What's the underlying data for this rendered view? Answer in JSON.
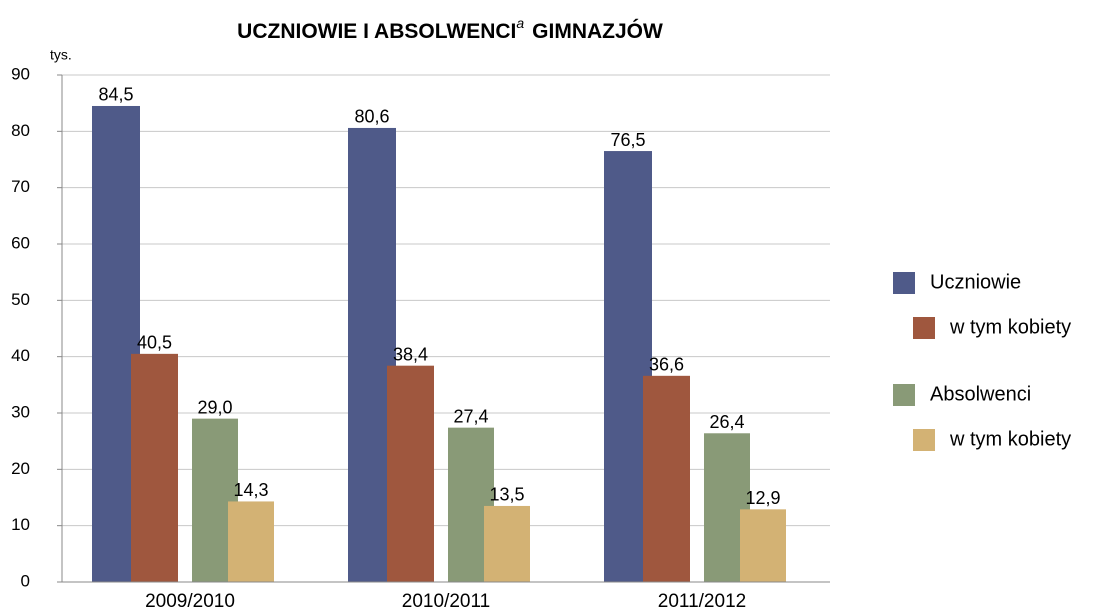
{
  "chart_data": {
    "type": "bar",
    "title": [
      "UCZNIOWIE I ABSOLWENCI",
      "a",
      "GIMNAZJÓW"
    ],
    "y_label": "tys.",
    "categories": [
      "2009/2010",
      "2010/2011",
      "2011/2012"
    ],
    "series": [
      {
        "name": "Uczniowie",
        "color": "#4f5a89",
        "values": [
          84.5,
          80.6,
          76.5
        ],
        "value_labels": [
          "84,5",
          "80,6",
          "76,5"
        ]
      },
      {
        "name": "w tym kobiety",
        "color": "#9f573e",
        "values": [
          40.5,
          38.4,
          36.6
        ],
        "value_labels": [
          "40,5",
          "38,4",
          "36,6"
        ]
      },
      {
        "name": "Absolwenci",
        "color": "#899a77",
        "values": [
          29.0,
          27.4,
          26.4
        ],
        "value_labels": [
          "29,0",
          "27,4",
          "26,4"
        ]
      },
      {
        "name": "w tym kobiety",
        "color": "#d3b274",
        "values": [
          14.3,
          13.5,
          12.9
        ],
        "value_labels": [
          "14,3",
          "13,5",
          "12,9"
        ]
      }
    ],
    "ylim": [
      0,
      90
    ],
    "yticks": [
      0,
      10,
      20,
      30,
      40,
      50,
      60,
      70,
      80,
      90
    ],
    "grid": true,
    "legend": "right"
  }
}
